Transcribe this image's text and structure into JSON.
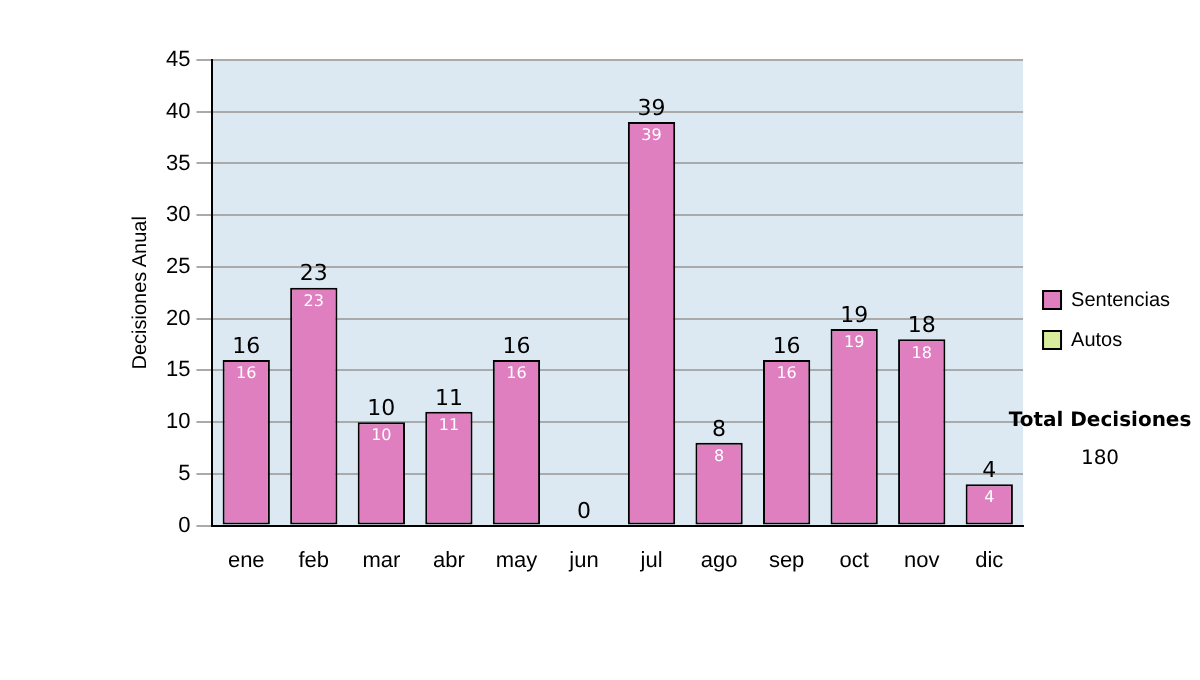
{
  "chart_data": {
    "type": "bar",
    "stacked": true,
    "ylabel": "Decisiones Anual",
    "categories": [
      "ene",
      "feb",
      "mar",
      "abr",
      "may",
      "jun",
      "jul",
      "ago",
      "sep",
      "oct",
      "nov",
      "dic"
    ],
    "series": [
      {
        "name": "Sentencias",
        "color": "#e07fc0",
        "values": [
          16,
          23,
          10,
          11,
          16,
          0,
          39,
          8,
          16,
          19,
          18,
          4
        ],
        "value_labels": [
          "16",
          "23",
          "10",
          "11",
          "16",
          null,
          "39",
          "8",
          "16",
          "19",
          "18",
          "4"
        ]
      },
      {
        "name": "Autos",
        "color": "#d8ec9c",
        "values": [
          0,
          0,
          0,
          0,
          0,
          0,
          0,
          0,
          0,
          0,
          0,
          0
        ]
      }
    ],
    "totals": [
      "16",
      "23",
      "10",
      "11",
      "16",
      "0",
      "39",
      "8",
      "16",
      "19",
      "18",
      "4"
    ],
    "ylim": [
      0,
      45
    ],
    "yticks": [
      0,
      5,
      10,
      15,
      20,
      25,
      30,
      35,
      40,
      45
    ],
    "grid": "y",
    "legend": "right",
    "annotations": [
      "Total Decisiones",
      "180"
    ]
  }
}
